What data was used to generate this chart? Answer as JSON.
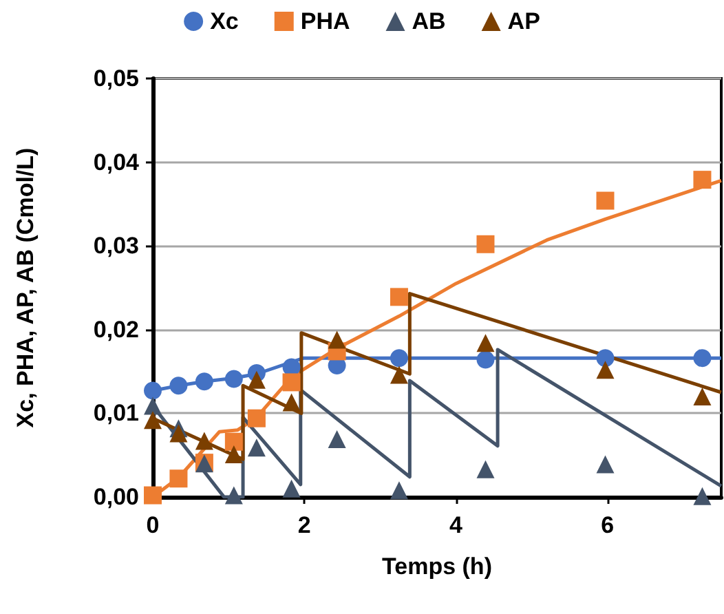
{
  "chart_data": {
    "type": "scatter",
    "xlabel": "Temps (h)",
    "ylabel": "Xc, PHA, AP, AB (Cmol/L)",
    "xlim": [
      0,
      7.5
    ],
    "xticks": [
      0,
      2,
      4,
      6
    ],
    "ylim": [
      0,
      0.05
    ],
    "yticks": [
      {
        "value": 0,
        "label": "0,00"
      },
      {
        "value": 0.01,
        "label": "0,01"
      },
      {
        "value": 0.02,
        "label": "0,02"
      },
      {
        "value": 0.03,
        "label": "0,03"
      },
      {
        "value": 0.04,
        "label": "0,04"
      },
      {
        "value": 0.05,
        "label": "0,05"
      }
    ],
    "grid": "y",
    "legend": "top",
    "x": [
      0,
      0.34,
      0.68,
      1.07,
      1.37,
      1.83,
      2.43,
      3.25,
      4.39,
      5.97,
      7.25
    ],
    "series": [
      {
        "name": "Xc",
        "marker": "circle",
        "color": "#4472c4",
        "values": [
          0.0127,
          0.0133,
          0.0138,
          0.0141,
          0.0148,
          0.0155,
          0.0157,
          0.0166,
          0.0164,
          0.0166,
          0.0166
        ]
      },
      {
        "name": "PHA",
        "marker": "square",
        "color": "#ed7d31",
        "values": [
          0.0002,
          0.0022,
          0.0041,
          0.0066,
          0.0094,
          0.0137,
          0.0174,
          0.0239,
          0.0302,
          0.0354,
          0.0379
        ]
      },
      {
        "name": "AB",
        "marker": "triangle",
        "color": "#44546a",
        "values": [
          0.0109,
          0.0082,
          0.004,
          0.0002,
          0.0059,
          0.001,
          0.0069,
          0.0008,
          0.0033,
          0.0039,
          0.0001
        ]
      },
      {
        "name": "AP",
        "marker": "triangle",
        "color": "#7b3f00",
        "values": [
          0.0092,
          0.0076,
          0.0067,
          0.0051,
          0.014,
          0.0113,
          0.0188,
          0.0146,
          0.0184,
          0.0152,
          0.012
        ]
      },
      {
        "type": "line",
        "marker": "none",
        "color": "#4472c4",
        "x": [
          0,
          0.34,
          0.68,
          1.07,
          1.37,
          1.99,
          7.5
        ],
        "values": [
          0.0127,
          0.0133,
          0.0138,
          0.0142,
          0.0147,
          0.0166,
          0.0166
        ]
      },
      {
        "type": "line",
        "marker": "none",
        "color": "#ed7d31",
        "x": [
          0,
          0.34,
          0.88,
          1.12,
          1.36,
          1.84,
          2.44,
          3.25,
          4.0,
          5.2,
          5.97,
          7.5
        ],
        "values": [
          0,
          0.0023,
          0.0078,
          0.008,
          0.0094,
          0.0144,
          0.0178,
          0.0216,
          0.0255,
          0.0307,
          0.0332,
          0.0378
        ]
      },
      {
        "type": "line",
        "marker": "none",
        "color": "#44546a",
        "x": [
          0,
          0.94,
          1.19,
          1.19,
          1.95,
          1.95,
          3.39,
          3.39,
          4.55,
          4.55,
          7.5
        ],
        "values": [
          0.0109,
          0,
          0,
          0.0095,
          0.0015,
          0.0128,
          0.0024,
          0.0139,
          0.0061,
          0.0176,
          0.0013
        ]
      },
      {
        "type": "line",
        "marker": "none",
        "color": "#7b3f00",
        "x": [
          0,
          1.19,
          1.19,
          1.96,
          1.96,
          3.39,
          3.39,
          7.5
        ],
        "values": [
          0.0094,
          0.0045,
          0.0133,
          0.01,
          0.0196,
          0.0147,
          0.0243,
          0.0125
        ]
      }
    ]
  }
}
